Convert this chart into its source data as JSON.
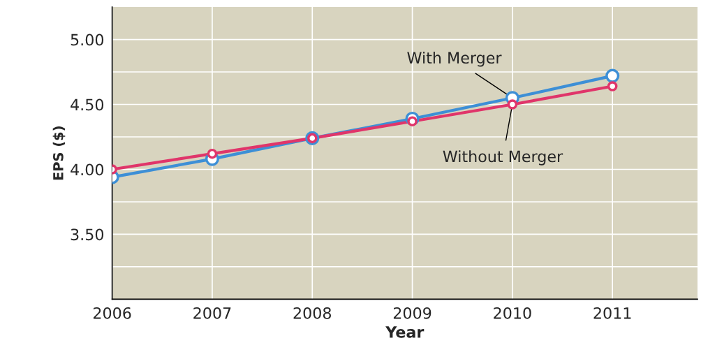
{
  "chart_data": {
    "type": "line",
    "xlabel": "Year",
    "ylabel": "EPS ($)",
    "x": [
      2006,
      2007,
      2008,
      2009,
      2010,
      2011
    ],
    "series": [
      {
        "name": "With Merger",
        "color": "#3d8fd6",
        "values": [
          3.94,
          4.08,
          4.24,
          4.39,
          4.55,
          4.72
        ]
      },
      {
        "name": "Without Merger",
        "color": "#e0356a",
        "values": [
          4.0,
          4.12,
          4.24,
          4.37,
          4.5,
          4.64
        ]
      }
    ],
    "xlim": [
      2006,
      2011.85
    ],
    "ylim": [
      3.0,
      5.25
    ],
    "xticks": [
      2006,
      2007,
      2008,
      2009,
      2010,
      2011
    ],
    "yticks": [
      {
        "value": 3.25,
        "label": null
      },
      {
        "value": 3.5,
        "label": "3.50"
      },
      {
        "value": 3.75,
        "label": null
      },
      {
        "value": 4.0,
        "label": "4.00"
      },
      {
        "value": 4.25,
        "label": null
      },
      {
        "value": 4.5,
        "label": "4.50"
      },
      {
        "value": 4.75,
        "label": null
      },
      {
        "value": 5.0,
        "label": "5.00"
      }
    ],
    "grid": true,
    "marker": "circle",
    "line_style": "solid",
    "legend": false
  }
}
